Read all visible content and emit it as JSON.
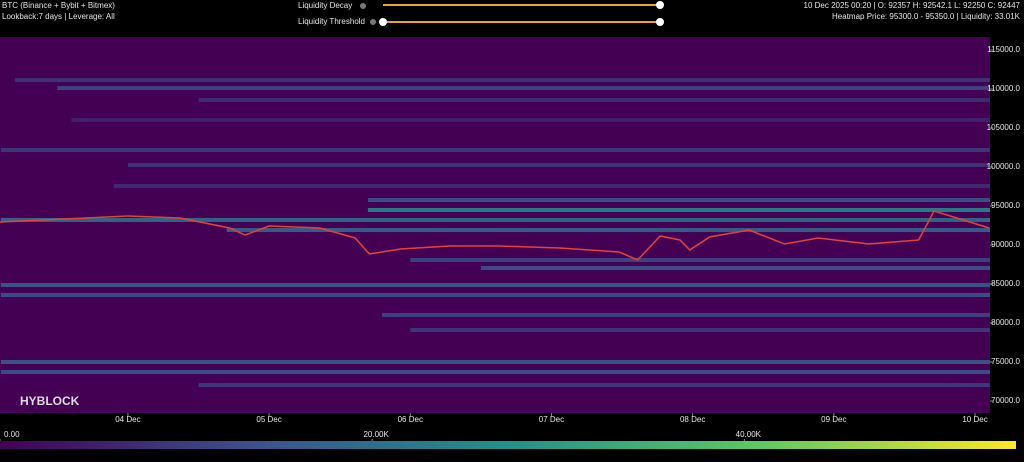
{
  "chart_data": {
    "type": "heatmap",
    "title": "BTC (Binance + Bybit + Bitmex)",
    "subtitle": "Lookback:7 days | Leverage: All",
    "controls": [
      "Liquidity Decay",
      "Liquidity Threshold"
    ],
    "info": [
      "10 Dec 2025 00:20 | O: 92357 H: 92542.1 L: 92250 C: 92447",
      "Heatmap Price: 95300.0 - 95350.0 | Liquidity: 33.01K"
    ],
    "watermark": "HYBLOCK",
    "colormap": "viridis",
    "xlim": [
      3.094,
      10.106
    ],
    "xticks": [
      {
        "value": 4,
        "label": "04 Dec"
      },
      {
        "value": 5,
        "label": "05 Dec"
      },
      {
        "value": 6,
        "label": "06 Dec"
      },
      {
        "value": 7,
        "label": "07 Dec"
      },
      {
        "value": 8,
        "label": "08 Dec"
      },
      {
        "value": 9,
        "label": "09 Dec"
      },
      {
        "value": 10,
        "label": "10 Dec"
      }
    ],
    "ylim": [
      68460,
      116670
    ],
    "yticks": [
      {
        "value": 70000,
        "label": "70000.0"
      },
      {
        "value": 75000,
        "label": "75000.0"
      },
      {
        "value": 80000,
        "label": "80000.0"
      },
      {
        "value": 85000,
        "label": "85000.0"
      },
      {
        "value": 90000,
        "label": "90000.0"
      },
      {
        "value": 95000,
        "label": "95000.0"
      },
      {
        "value": 100000,
        "label": "100000.0"
      },
      {
        "value": 105000,
        "label": "105000.0"
      },
      {
        "value": 110000,
        "label": "110000.0"
      },
      {
        "value": 115000,
        "label": "115000.0"
      }
    ],
    "clim": [
      0,
      54600
    ],
    "cticks": [
      {
        "value": 0,
        "label": "0.00"
      },
      {
        "value": 20000,
        "label": "20.00K"
      },
      {
        "value": 40000,
        "label": "40.00K"
      }
    ],
    "heatmap": {
      "levels": [
        111150,
        110130,
        108590,
        106030,
        102180,
        100260,
        97560,
        95770,
        94490,
        93210,
        91920,
        88080,
        87050,
        84870,
        83590,
        81030,
        79100,
        75000,
        73720,
        72050
      ],
      "starts": [
        3.2,
        3.5,
        4.5,
        3.6,
        3.1,
        4.0,
        3.9,
        5.7,
        5.7,
        3.1,
        4.7,
        6.0,
        6.5,
        3.1,
        3.1,
        5.8,
        6.0,
        3.1,
        3.1,
        4.5
      ],
      "values": [
        9000,
        12000,
        8000,
        6000,
        10000,
        9000,
        8000,
        14000,
        25000,
        20000,
        18000,
        12000,
        14000,
        16000,
        14000,
        12000,
        10000,
        16000,
        14000,
        10000
      ]
    },
    "series": [
      {
        "name": "BTC",
        "color": "#e0443a",
        "x": [
          3.094,
          4.0,
          4.37,
          4.72,
          4.83,
          5.0,
          5.36,
          5.61,
          5.71,
          5.93,
          6.28,
          6.63,
          7.06,
          7.48,
          7.61,
          7.77,
          7.91,
          7.98,
          8.12,
          8.4,
          8.65,
          8.89,
          9.25,
          9.6,
          9.71,
          10.1
        ],
        "values": [
          92950,
          93720,
          93460,
          92180,
          91280,
          92440,
          92180,
          90900,
          88850,
          89490,
          89870,
          89870,
          89620,
          89100,
          88080,
          91150,
          90640,
          89360,
          91020,
          91920,
          90130,
          90900,
          90130,
          90640,
          94360,
          92180
        ]
      }
    ]
  }
}
